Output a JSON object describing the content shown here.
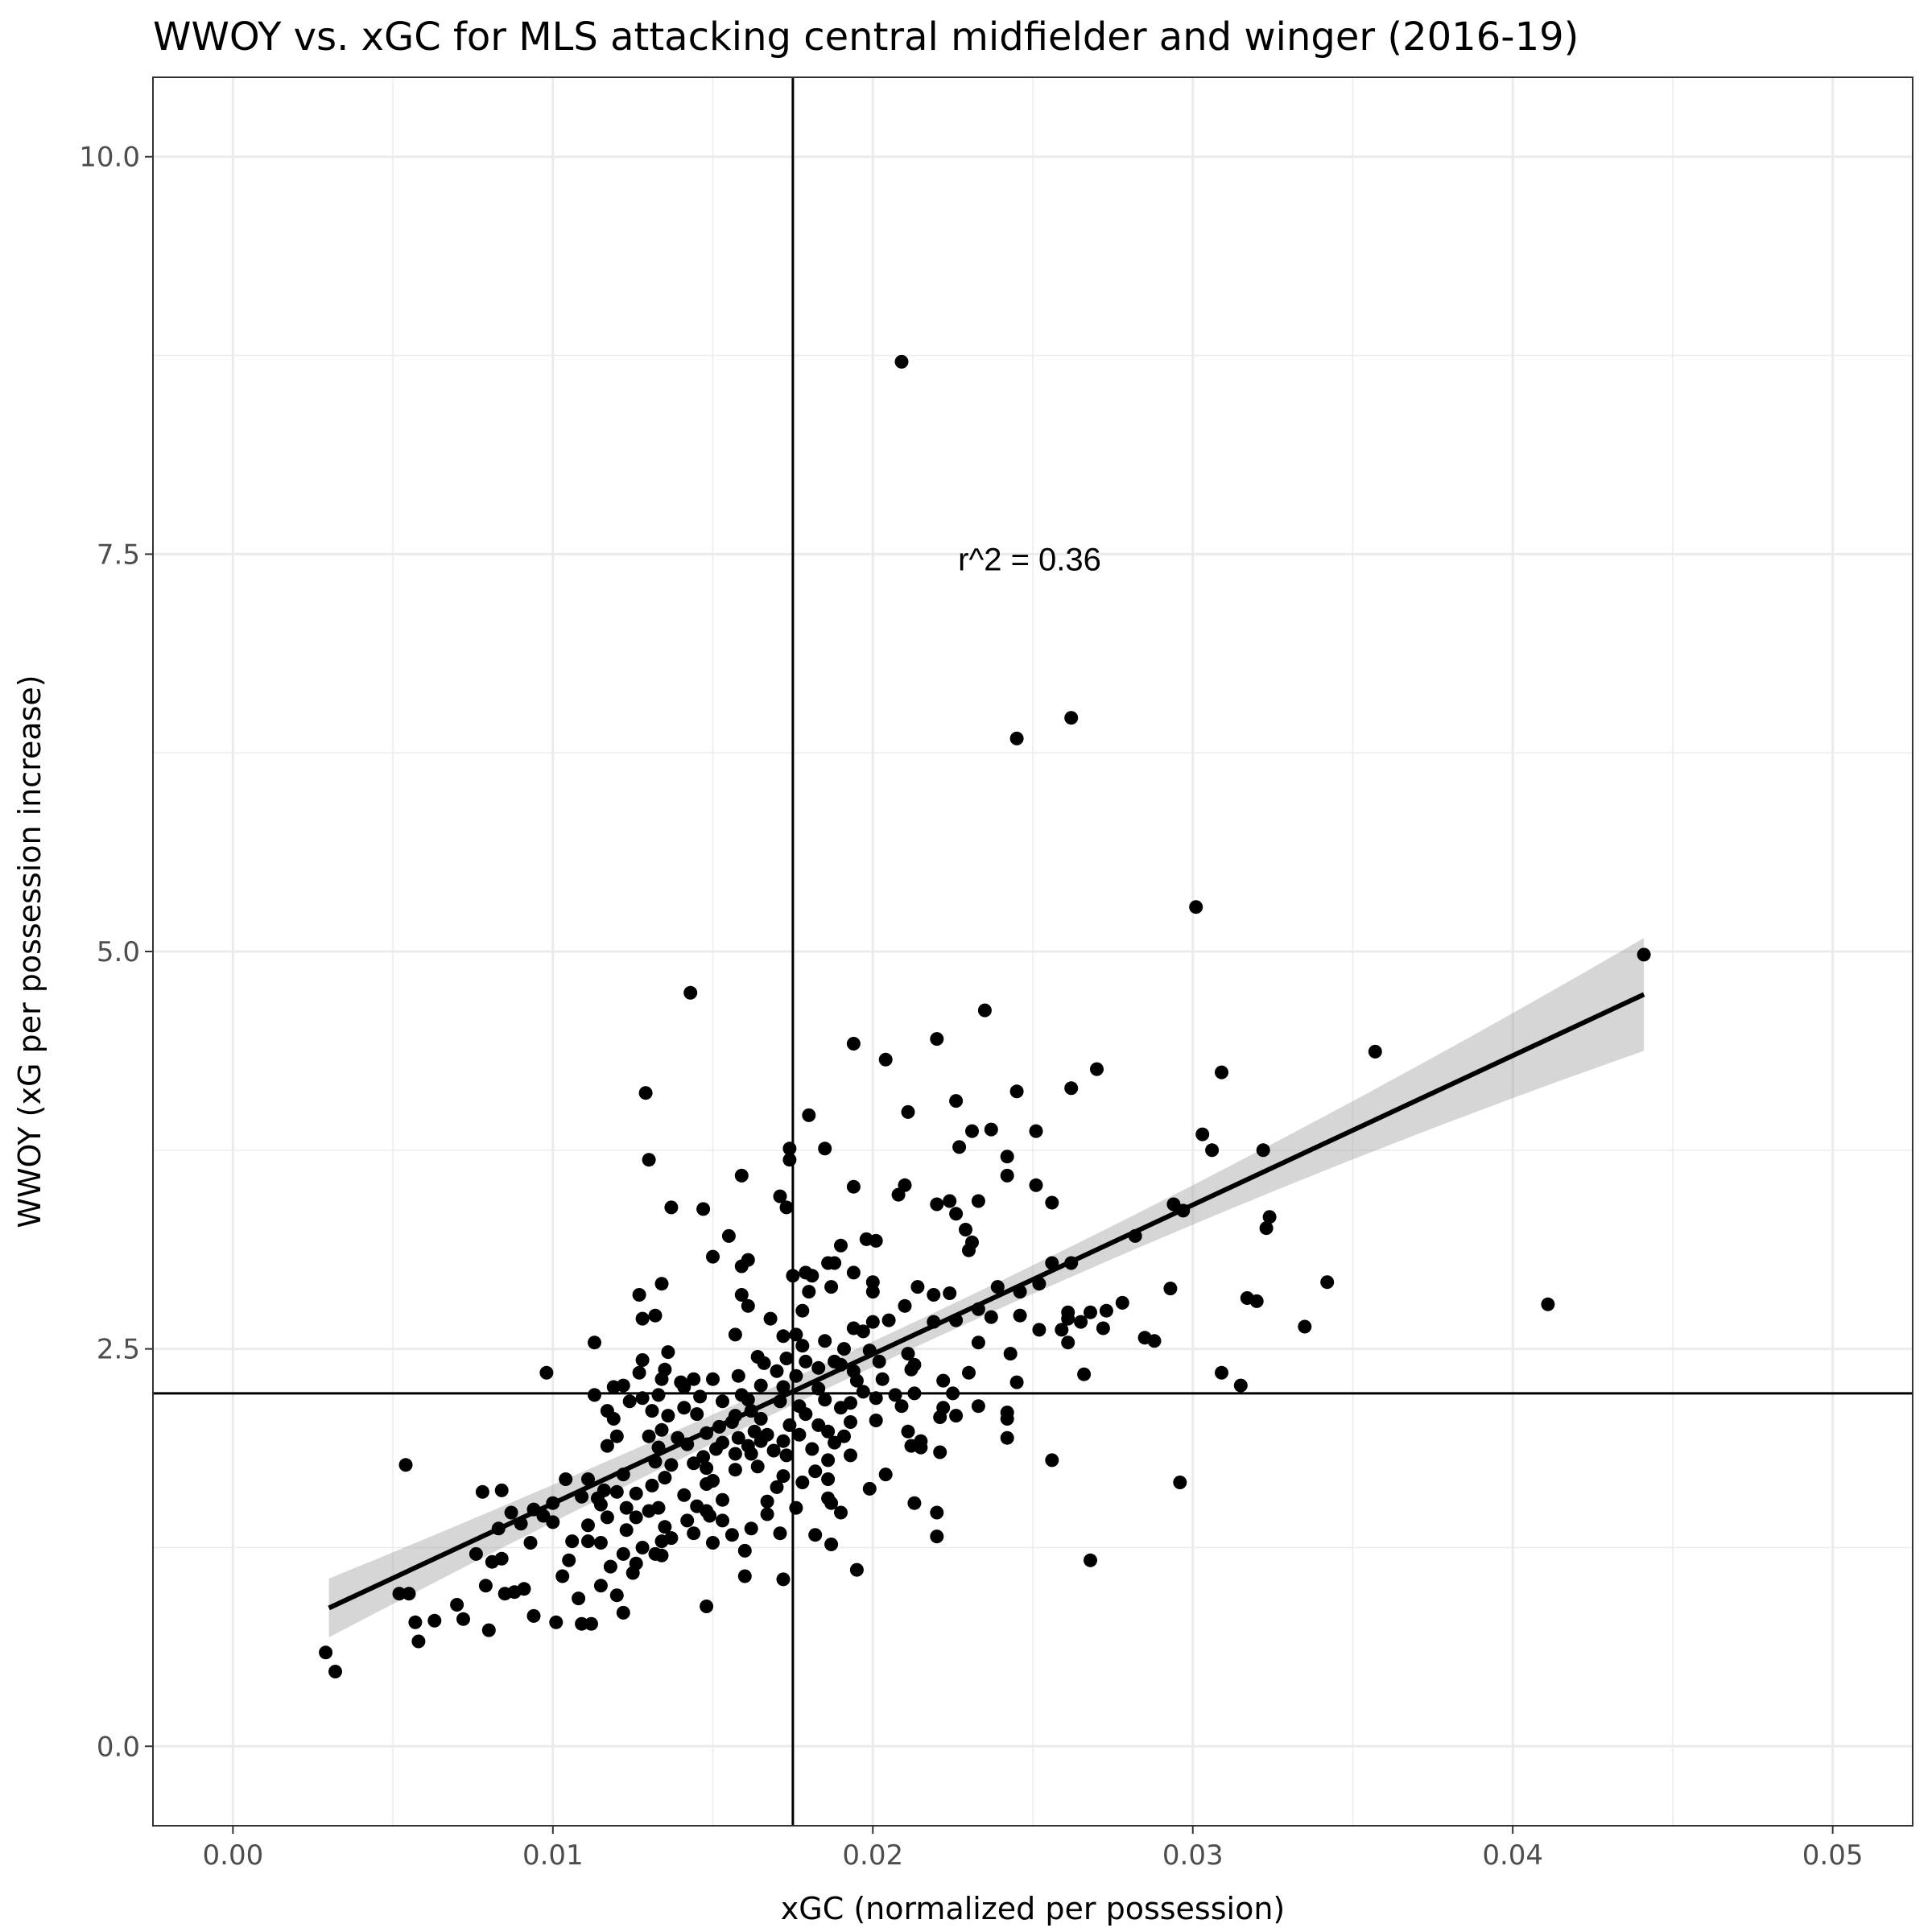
{
  "chart_data": {
    "type": "scatter",
    "title": "WWOY vs. xGC for MLS attacking central midfielder and winger (2016-19)",
    "xlabel": "xGC (normalized per possession)",
    "ylabel": "WWOY (xG per possession increase)",
    "xlim": [
      -0.0025,
      0.0525
    ],
    "ylim": [
      -0.5,
      10.5
    ],
    "x_ticks": [
      0.0,
      0.01,
      0.02,
      0.03,
      0.04,
      0.05
    ],
    "x_tick_labels": [
      "0.00",
      "0.01",
      "0.02",
      "0.03",
      "0.04",
      "0.05"
    ],
    "y_ticks": [
      0.0,
      2.5,
      5.0,
      7.5,
      10.0
    ],
    "y_tick_labels": [
      "0.0",
      "2.5",
      "5.0",
      "7.5",
      "10.0"
    ],
    "grid": true,
    "vline_x": 0.0175,
    "hline_y": 2.22,
    "annotation": {
      "text": "r^2 = 0.36",
      "x": 0.0249,
      "y": 7.47
    },
    "fit_line": {
      "x": [
        0.003,
        0.0441
      ],
      "y": [
        0.87,
        4.73
      ],
      "ci_lower": [
        0.69,
        4.38
      ],
      "ci_upper": [
        1.06,
        5.09
      ]
    },
    "points": [
      [
        0.0209,
        8.71
      ],
      [
        0.0262,
        6.47
      ],
      [
        0.0245,
        6.34
      ],
      [
        0.0301,
        5.28
      ],
      [
        0.0441,
        4.98
      ],
      [
        0.0143,
        4.74
      ],
      [
        0.0235,
        4.63
      ],
      [
        0.022,
        4.45
      ],
      [
        0.0194,
        4.42
      ],
      [
        0.0357,
        4.37
      ],
      [
        0.0204,
        4.32
      ],
      [
        0.027,
        4.26
      ],
      [
        0.0309,
        4.24
      ],
      [
        0.0262,
        4.14
      ],
      [
        0.0245,
        4.12
      ],
      [
        0.0129,
        4.11
      ],
      [
        0.0226,
        4.06
      ],
      [
        0.0211,
        3.99
      ],
      [
        0.018,
        3.97
      ],
      [
        0.0237,
        3.88
      ],
      [
        0.0231,
        3.87
      ],
      [
        0.0251,
        3.87
      ],
      [
        0.0303,
        3.85
      ],
      [
        0.0227,
        3.77
      ],
      [
        0.0174,
        3.76
      ],
      [
        0.0185,
        3.76
      ],
      [
        0.0306,
        3.75
      ],
      [
        0.0322,
        3.75
      ],
      [
        0.0242,
        3.71
      ],
      [
        0.0174,
        3.69
      ],
      [
        0.013,
        3.69
      ],
      [
        0.0242,
        3.59
      ],
      [
        0.0159,
        3.59
      ],
      [
        0.0251,
        3.53
      ],
      [
        0.021,
        3.53
      ],
      [
        0.0194,
        3.52
      ],
      [
        0.0208,
        3.47
      ],
      [
        0.0171,
        3.46
      ],
      [
        0.0224,
        3.43
      ],
      [
        0.0233,
        3.43
      ],
      [
        0.0256,
        3.42
      ],
      [
        0.0294,
        3.41
      ],
      [
        0.022,
        3.41
      ],
      [
        0.0173,
        3.39
      ],
      [
        0.0137,
        3.39
      ],
      [
        0.0147,
        3.38
      ],
      [
        0.0297,
        3.37
      ],
      [
        0.0226,
        3.35
      ],
      [
        0.0324,
        3.33
      ],
      [
        0.0229,
        3.25
      ],
      [
        0.0323,
        3.26
      ],
      [
        0.0282,
        3.21
      ],
      [
        0.0155,
        3.21
      ],
      [
        0.0198,
        3.19
      ],
      [
        0.0231,
        3.17
      ],
      [
        0.0201,
        3.18
      ],
      [
        0.023,
        3.12
      ],
      [
        0.019,
        3.15
      ],
      [
        0.015,
        3.08
      ],
      [
        0.0161,
        3.06
      ],
      [
        0.0159,
        3.02
      ],
      [
        0.0188,
        3.04
      ],
      [
        0.0186,
        3.04
      ],
      [
        0.0256,
        3.04
      ],
      [
        0.0262,
        3.04
      ],
      [
        0.0194,
        2.98
      ],
      [
        0.0179,
        2.98
      ],
      [
        0.0181,
        2.96
      ],
      [
        0.0175,
        2.96
      ],
      [
        0.0342,
        2.92
      ],
      [
        0.02,
        2.92
      ],
      [
        0.0134,
        2.91
      ],
      [
        0.0252,
        2.91
      ],
      [
        0.0239,
        2.89
      ],
      [
        0.0214,
        2.89
      ],
      [
        0.0187,
        2.89
      ],
      [
        0.0293,
        2.88
      ],
      [
        0.0246,
        2.86
      ],
      [
        0.02,
        2.86
      ],
      [
        0.018,
        2.86
      ],
      [
        0.0219,
        2.84
      ],
      [
        0.0224,
        2.85
      ],
      [
        0.0127,
        2.84
      ],
      [
        0.0159,
        2.84
      ],
      [
        0.0317,
        2.82
      ],
      [
        0.032,
        2.8
      ],
      [
        0.0278,
        2.79
      ],
      [
        0.021,
        2.77
      ],
      [
        0.0411,
        2.78
      ],
      [
        0.0161,
        2.77
      ],
      [
        0.0233,
        2.75
      ],
      [
        0.0273,
        2.74
      ],
      [
        0.0178,
        2.74
      ],
      [
        0.0261,
        2.73
      ],
      [
        0.0268,
        2.73
      ],
      [
        0.0132,
        2.71
      ],
      [
        0.0128,
        2.69
      ],
      [
        0.0168,
        2.69
      ],
      [
        0.0226,
        2.68
      ],
      [
        0.02,
        2.67
      ],
      [
        0.0205,
        2.68
      ],
      [
        0.0219,
        2.67
      ],
      [
        0.0237,
        2.7
      ],
      [
        0.0261,
        2.69
      ],
      [
        0.0265,
        2.67
      ],
      [
        0.0246,
        2.71
      ],
      [
        0.0335,
        2.64
      ],
      [
        0.0272,
        2.63
      ],
      [
        0.0194,
        2.63
      ],
      [
        0.0252,
        2.62
      ],
      [
        0.0259,
        2.62
      ],
      [
        0.0197,
        2.61
      ],
      [
        0.0176,
        2.59
      ],
      [
        0.0157,
        2.59
      ],
      [
        0.0172,
        2.58
      ],
      [
        0.0285,
        2.57
      ],
      [
        0.0288,
        2.55
      ],
      [
        0.0185,
        2.55
      ],
      [
        0.0233,
        2.54
      ],
      [
        0.0113,
        2.54
      ],
      [
        0.0261,
        2.54
      ],
      [
        0.0178,
        2.52
      ],
      [
        0.0191,
        2.5
      ],
      [
        0.0199,
        2.49
      ],
      [
        0.0136,
        2.48
      ],
      [
        0.0211,
        2.47
      ],
      [
        0.0243,
        2.47
      ],
      [
        0.0164,
        2.45
      ],
      [
        0.0173,
        2.44
      ],
      [
        0.0128,
        2.43
      ],
      [
        0.0179,
        2.42
      ],
      [
        0.0202,
        2.42
      ],
      [
        0.0188,
        2.42
      ],
      [
        0.0166,
        2.41
      ],
      [
        0.019,
        2.4
      ],
      [
        0.0213,
        2.4
      ],
      [
        0.0183,
        2.38
      ],
      [
        0.0135,
        2.37
      ],
      [
        0.0098,
        2.35
      ],
      [
        0.0127,
        2.35
      ],
      [
        0.017,
        2.36
      ],
      [
        0.0194,
        2.36
      ],
      [
        0.0212,
        2.37
      ],
      [
        0.023,
        2.35
      ],
      [
        0.0266,
        2.34
      ],
      [
        0.0309,
        2.35
      ],
      [
        0.0158,
        2.33
      ],
      [
        0.0176,
        2.33
      ],
      [
        0.015,
        2.31
      ],
      [
        0.0203,
        2.31
      ],
      [
        0.0144,
        2.31
      ],
      [
        0.0134,
        2.31
      ],
      [
        0.0195,
        2.3
      ],
      [
        0.0222,
        2.3
      ],
      [
        0.014,
        2.29
      ],
      [
        0.0245,
        2.29
      ],
      [
        0.0315,
        2.27
      ],
      [
        0.0122,
        2.27
      ],
      [
        0.0165,
        2.27
      ],
      [
        0.0172,
        2.26
      ],
      [
        0.0119,
        2.26
      ],
      [
        0.0141,
        2.26
      ],
      [
        0.0183,
        2.25
      ],
      [
        0.0197,
        2.23
      ],
      [
        0.0213,
        2.22
      ],
      [
        0.0225,
        2.22
      ],
      [
        0.0113,
        2.21
      ],
      [
        0.0159,
        2.21
      ],
      [
        0.0207,
        2.21
      ],
      [
        0.0133,
        2.21
      ],
      [
        0.0146,
        2.2
      ],
      [
        0.0128,
        2.19
      ],
      [
        0.0201,
        2.19
      ],
      [
        0.0185,
        2.18
      ],
      [
        0.0161,
        2.18
      ],
      [
        0.0171,
        2.17
      ],
      [
        0.0124,
        2.17
      ],
      [
        0.0153,
        2.17
      ],
      [
        0.0193,
        2.16
      ],
      [
        0.0233,
        2.14
      ],
      [
        0.0209,
        2.14
      ],
      [
        0.0177,
        2.14
      ],
      [
        0.0141,
        2.13
      ],
      [
        0.0222,
        2.13
      ],
      [
        0.019,
        2.13
      ],
      [
        0.0162,
        2.11
      ],
      [
        0.0131,
        2.11
      ],
      [
        0.0117,
        2.11
      ],
      [
        0.0242,
        2.1
      ],
      [
        0.0145,
        2.09
      ],
      [
        0.0179,
        2.09
      ],
      [
        0.0157,
        2.08
      ],
      [
        0.0226,
        2.08
      ],
      [
        0.0136,
        2.08
      ],
      [
        0.0221,
        2.07
      ],
      [
        0.0119,
        2.06
      ],
      [
        0.0165,
        2.06
      ],
      [
        0.0201,
        2.05
      ],
      [
        0.0242,
        2.06
      ],
      [
        0.0156,
        2.04
      ],
      [
        0.0193,
        2.04
      ],
      [
        0.0183,
        2.02
      ],
      [
        0.0174,
        2.02
      ],
      [
        0.0152,
        2.01
      ],
      [
        0.0134,
        1.99
      ],
      [
        0.0163,
        1.98
      ],
      [
        0.0186,
        1.98
      ],
      [
        0.0211,
        1.98
      ],
      [
        0.0148,
        1.97
      ],
      [
        0.0167,
        1.96
      ],
      [
        0.013,
        1.95
      ],
      [
        0.0177,
        1.96
      ],
      [
        0.012,
        1.95
      ],
      [
        0.0191,
        1.95
      ],
      [
        0.0158,
        1.94
      ],
      [
        0.0139,
        1.94
      ],
      [
        0.0242,
        1.94
      ],
      [
        0.0165,
        1.92
      ],
      [
        0.0172,
        1.92
      ],
      [
        0.0153,
        1.91
      ],
      [
        0.0188,
        1.91
      ],
      [
        0.0215,
        1.92
      ],
      [
        0.0142,
        1.9
      ],
      [
        0.0117,
        1.89
      ],
      [
        0.0161,
        1.89
      ],
      [
        0.0212,
        1.89
      ],
      [
        0.0133,
        1.88
      ],
      [
        0.0215,
        1.88
      ],
      [
        0.0181,
        1.87
      ],
      [
        0.0151,
        1.87
      ],
      [
        0.0169,
        1.86
      ],
      [
        0.0221,
        1.85
      ],
      [
        0.0162,
        1.84
      ],
      [
        0.0157,
        1.84
      ],
      [
        0.0173,
        1.83
      ],
      [
        0.0193,
        1.83
      ],
      [
        0.0147,
        1.82
      ],
      [
        0.0256,
        1.8
      ],
      [
        0.0186,
        1.8
      ],
      [
        0.0132,
        1.79
      ],
      [
        0.0144,
        1.78
      ],
      [
        0.0137,
        1.77
      ],
      [
        0.0164,
        1.76
      ],
      [
        0.0148,
        1.75
      ],
      [
        0.0054,
        1.77
      ],
      [
        0.0157,
        1.74
      ],
      [
        0.0182,
        1.73
      ],
      [
        0.0204,
        1.71
      ],
      [
        0.0122,
        1.71
      ],
      [
        0.0172,
        1.7
      ],
      [
        0.0135,
        1.69
      ],
      [
        0.0186,
        1.68
      ],
      [
        0.0104,
        1.68
      ],
      [
        0.0111,
        1.68
      ],
      [
        0.015,
        1.67
      ],
      [
        0.0178,
        1.66
      ],
      [
        0.0296,
        1.66
      ],
      [
        0.0148,
        1.65
      ],
      [
        0.0131,
        1.64
      ],
      [
        0.017,
        1.63
      ],
      [
        0.0199,
        1.62
      ],
      [
        0.0084,
        1.61
      ],
      [
        0.0116,
        1.61
      ],
      [
        0.0078,
        1.6
      ],
      [
        0.012,
        1.6
      ],
      [
        0.0126,
        1.59
      ],
      [
        0.0141,
        1.58
      ],
      [
        0.0186,
        1.56
      ],
      [
        0.0109,
        1.57
      ],
      [
        0.0114,
        1.56
      ],
      [
        0.0153,
        1.55
      ],
      [
        0.0167,
        1.54
      ],
      [
        0.0187,
        1.53
      ],
      [
        0.0213,
        1.53
      ],
      [
        0.01,
        1.53
      ],
      [
        0.0115,
        1.52
      ],
      [
        0.0145,
        1.51
      ],
      [
        0.0133,
        1.5
      ],
      [
        0.0176,
        1.5
      ],
      [
        0.0123,
        1.5
      ],
      [
        0.0094,
        1.49
      ],
      [
        0.013,
        1.48
      ],
      [
        0.0148,
        1.48
      ],
      [
        0.019,
        1.47
      ],
      [
        0.022,
        1.47
      ],
      [
        0.0087,
        1.47
      ],
      [
        0.0167,
        1.46
      ],
      [
        0.0149,
        1.45
      ],
      [
        0.0097,
        1.45
      ],
      [
        0.0117,
        1.44
      ],
      [
        0.0126,
        1.44
      ],
      [
        0.0153,
        1.42
      ],
      [
        0.0142,
        1.42
      ],
      [
        0.01,
        1.41
      ],
      [
        0.009,
        1.4
      ],
      [
        0.0111,
        1.39
      ],
      [
        0.0135,
        1.38
      ],
      [
        0.0162,
        1.37
      ],
      [
        0.0083,
        1.37
      ],
      [
        0.0123,
        1.36
      ],
      [
        0.0144,
        1.34
      ],
      [
        0.0171,
        1.34
      ],
      [
        0.0156,
        1.33
      ],
      [
        0.0182,
        1.33
      ],
      [
        0.022,
        1.32
      ],
      [
        0.0137,
        1.31
      ],
      [
        0.0106,
        1.29
      ],
      [
        0.0111,
        1.29
      ],
      [
        0.0115,
        1.28
      ],
      [
        0.0134,
        1.29
      ],
      [
        0.015,
        1.28
      ],
      [
        0.0093,
        1.28
      ],
      [
        0.0187,
        1.27
      ],
      [
        0.0128,
        1.25
      ],
      [
        0.016,
        1.23
      ],
      [
        0.0132,
        1.21
      ],
      [
        0.0076,
        1.21
      ],
      [
        0.0122,
        1.21
      ],
      [
        0.0134,
        1.2
      ],
      [
        0.0084,
        1.18
      ],
      [
        0.0268,
        1.17
      ],
      [
        0.0105,
        1.17
      ],
      [
        0.0081,
        1.16
      ],
      [
        0.0126,
        1.15
      ],
      [
        0.0118,
        1.13
      ],
      [
        0.0195,
        1.11
      ],
      [
        0.0125,
        1.09
      ],
      [
        0.0103,
        1.07
      ],
      [
        0.016,
        1.07
      ],
      [
        0.0172,
        1.05
      ],
      [
        0.0115,
        1.01
      ],
      [
        0.0079,
        1.01
      ],
      [
        0.0091,
        0.99
      ],
      [
        0.0085,
        0.96
      ],
      [
        0.012,
        0.95
      ],
      [
        0.0088,
        0.97
      ],
      [
        0.0052,
        0.96
      ],
      [
        0.0055,
        0.96
      ],
      [
        0.0108,
        0.93
      ],
      [
        0.007,
        0.89
      ],
      [
        0.0148,
        0.88
      ],
      [
        0.0122,
        0.84
      ],
      [
        0.0094,
        0.82
      ],
      [
        0.0072,
        0.8
      ],
      [
        0.0063,
        0.79
      ],
      [
        0.0057,
        0.78
      ],
      [
        0.0101,
        0.78
      ],
      [
        0.0109,
        0.77
      ],
      [
        0.0112,
        0.77
      ],
      [
        0.008,
        0.73
      ],
      [
        0.0058,
        0.66
      ],
      [
        0.0029,
        0.59
      ],
      [
        0.0032,
        0.47
      ]
    ]
  }
}
